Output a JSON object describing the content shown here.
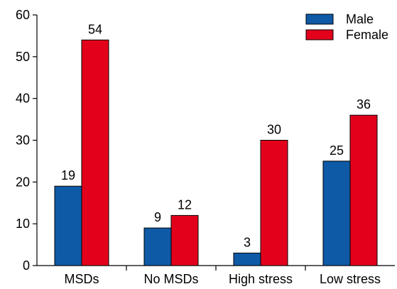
{
  "chart_data": {
    "type": "bar",
    "categories": [
      "MSDs",
      "No MSDs",
      "High stress",
      "Low stress"
    ],
    "series": [
      {
        "name": "Male",
        "values": [
          19,
          9,
          3,
          25
        ],
        "color": "#0e5aa6"
      },
      {
        "name": "Female",
        "values": [
          54,
          12,
          30,
          36
        ],
        "color": "#e3001b"
      }
    ],
    "ylim": [
      0,
      60
    ],
    "yticks": [
      0,
      10,
      20,
      30,
      40,
      50,
      60
    ],
    "title": "",
    "xlabel": "",
    "ylabel": "",
    "legend_position": "top-right",
    "grid": false
  }
}
